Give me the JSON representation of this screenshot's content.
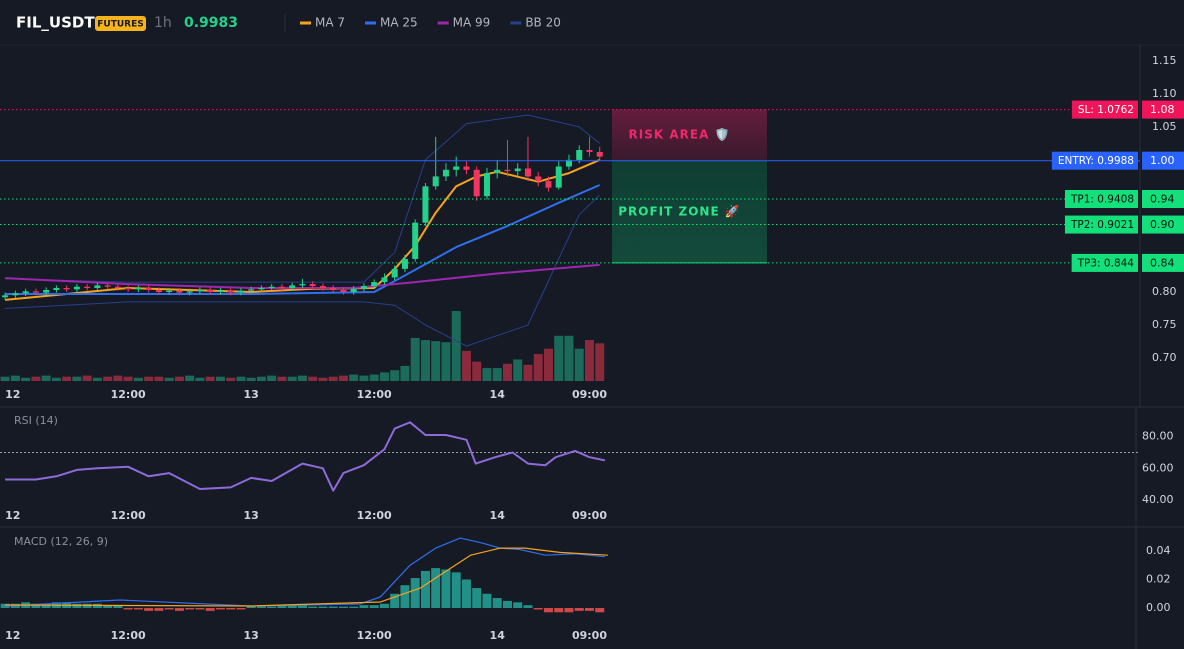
{
  "header": {
    "symbol": "FIL_USDT",
    "badge": "FUTURES",
    "interval": "1h",
    "price": 0.9983
  },
  "chart_data": [
    {
      "type": "candlestick",
      "xlim": [
        -0.5,
        110.7
      ],
      "xticks": [
        {
          "value": 0,
          "label": "12"
        },
        {
          "value": 12,
          "label": "12:00"
        },
        {
          "value": 24,
          "label": "13"
        },
        {
          "value": 36,
          "label": "12:00"
        },
        {
          "value": 48,
          "label": "14"
        },
        {
          "value": 57,
          "label": "09:00"
        }
      ],
      "ylim": [
        0.644,
        1.174
      ],
      "yticks": [
        {
          "value": 0.7,
          "label": "0.70"
        },
        0.75,
        {
          "value": 0.8,
          "label": "0.80"
        },
        1.05,
        {
          "value": 1.1,
          "label": "1.10"
        },
        1.15
      ],
      "up_color": "#23d18b",
      "down_color": "#f23660",
      "volume_up_color": "#1c6b5a",
      "volume_down_color": "#8a2a3c",
      "x": [
        0,
        1,
        2,
        3,
        4,
        5,
        6,
        7,
        8,
        9,
        10,
        11,
        12,
        13,
        14,
        15,
        16,
        17,
        18,
        19,
        20,
        21,
        22,
        23,
        24,
        25,
        26,
        27,
        28,
        29,
        30,
        31,
        32,
        33,
        34,
        35,
        36,
        37,
        38,
        39,
        40,
        41,
        42,
        43,
        44,
        45,
        46,
        47,
        48,
        49,
        50,
        51,
        52,
        53,
        54,
        55,
        56,
        57,
        58
      ],
      "open": [
        0.792,
        0.795,
        0.798,
        0.801,
        0.799,
        0.803,
        0.806,
        0.804,
        0.808,
        0.806,
        0.81,
        0.808,
        0.806,
        0.804,
        0.806,
        0.803,
        0.8,
        0.802,
        0.799,
        0.801,
        0.803,
        0.8,
        0.802,
        0.799,
        0.802,
        0.804,
        0.806,
        0.808,
        0.806,
        0.81,
        0.812,
        0.809,
        0.806,
        0.803,
        0.8,
        0.805,
        0.809,
        0.815,
        0.822,
        0.835,
        0.85,
        0.905,
        0.96,
        0.975,
        0.985,
        0.99,
        0.985,
        0.945,
        0.98,
        0.985,
        0.983,
        0.987,
        0.975,
        0.968,
        0.958,
        0.99,
        1.0,
        1.015,
        1.012
      ],
      "high": [
        0.799,
        0.802,
        0.805,
        0.805,
        0.807,
        0.81,
        0.81,
        0.812,
        0.812,
        0.814,
        0.814,
        0.812,
        0.81,
        0.81,
        0.81,
        0.807,
        0.806,
        0.806,
        0.805,
        0.807,
        0.807,
        0.806,
        0.806,
        0.806,
        0.808,
        0.81,
        0.812,
        0.812,
        0.814,
        0.82,
        0.816,
        0.813,
        0.81,
        0.807,
        0.809,
        0.813,
        0.819,
        0.828,
        0.84,
        0.856,
        0.91,
        0.965,
        1.035,
        0.995,
        1.005,
        0.998,
        0.99,
        0.988,
        1.0,
        1.03,
        0.995,
        1.035,
        0.982,
        0.975,
        0.998,
        1.008,
        1.022,
        1.035,
        1.02
      ],
      "low": [
        0.788,
        0.791,
        0.794,
        0.795,
        0.795,
        0.799,
        0.8,
        0.8,
        0.802,
        0.802,
        0.804,
        0.802,
        0.8,
        0.8,
        0.799,
        0.796,
        0.796,
        0.795,
        0.795,
        0.797,
        0.796,
        0.796,
        0.795,
        0.795,
        0.798,
        0.8,
        0.802,
        0.802,
        0.802,
        0.806,
        0.805,
        0.802,
        0.799,
        0.796,
        0.796,
        0.801,
        0.805,
        0.811,
        0.818,
        0.83,
        0.846,
        0.9,
        0.955,
        0.968,
        0.975,
        0.978,
        0.938,
        0.94,
        0.972,
        0.975,
        0.975,
        0.968,
        0.96,
        0.952,
        0.955,
        0.985,
        0.995,
        1.005,
        0.998
      ],
      "close": [
        0.795,
        0.798,
        0.801,
        0.799,
        0.803,
        0.806,
        0.804,
        0.808,
        0.806,
        0.81,
        0.808,
        0.806,
        0.804,
        0.806,
        0.803,
        0.8,
        0.802,
        0.799,
        0.801,
        0.803,
        0.8,
        0.802,
        0.799,
        0.802,
        0.804,
        0.806,
        0.808,
        0.806,
        0.81,
        0.812,
        0.809,
        0.806,
        0.803,
        0.8,
        0.805,
        0.809,
        0.815,
        0.822,
        0.835,
        0.85,
        0.905,
        0.96,
        0.975,
        0.985,
        0.99,
        0.985,
        0.945,
        0.98,
        0.985,
        0.983,
        0.987,
        0.975,
        0.968,
        0.958,
        0.99,
        1.0,
        1.015,
        1.012,
        1.005
      ],
      "volume": [
        4,
        5,
        3,
        4,
        5,
        3,
        4,
        4,
        5,
        3,
        4,
        5,
        4,
        3,
        4,
        4,
        3,
        4,
        5,
        3,
        4,
        4,
        3,
        4,
        3,
        4,
        5,
        4,
        4,
        5,
        4,
        3,
        4,
        5,
        6,
        5,
        6,
        8,
        10,
        14,
        40,
        38,
        37,
        36,
        65,
        28,
        18,
        12,
        12,
        16,
        20,
        15,
        25,
        30,
        42,
        42,
        30,
        38,
        35
      ],
      "series": [
        {
          "name": "MA 7",
          "color": "#f7a21b",
          "x": [
            0,
            6,
            12,
            18,
            24,
            30,
            36,
            38,
            40,
            42,
            44,
            46,
            48,
            52,
            55,
            58
          ],
          "values": [
            0.788,
            0.797,
            0.806,
            0.803,
            0.8,
            0.805,
            0.806,
            0.835,
            0.87,
            0.92,
            0.96,
            0.975,
            0.982,
            0.967,
            0.98,
            1.0
          ]
        },
        {
          "name": "MA 25",
          "color": "#2f6fed",
          "x": [
            0,
            12,
            24,
            36,
            39,
            44,
            49,
            54,
            58
          ],
          "values": [
            0.797,
            0.797,
            0.797,
            0.8,
            0.825,
            0.868,
            0.9,
            0.935,
            0.962
          ]
        },
        {
          "name": "MA 99",
          "color": "#9c27b0",
          "x": [
            0,
            12,
            24,
            34,
            40,
            48,
            58
          ],
          "values": [
            0.821,
            0.812,
            0.806,
            0.806,
            0.815,
            0.828,
            0.841
          ]
        },
        {
          "name": "BB 20",
          "color": "#27408b",
          "x": [
            0,
            12,
            24,
            35,
            38,
            41,
            45,
            51,
            56,
            58
          ],
          "upper": [
            0.82,
            0.815,
            0.815,
            0.815,
            0.86,
            1.0,
            1.055,
            1.068,
            1.05,
            1.025
          ],
          "lower": [
            0.775,
            0.785,
            0.785,
            0.785,
            0.78,
            0.75,
            0.718,
            0.75,
            0.917,
            0.947
          ]
        }
      ],
      "levels": [
        {
          "label": "SL: 1.0762",
          "value": 1.0762,
          "tick": "1.08",
          "color": "#f0145a",
          "text_color": "#ffffff",
          "style": "dotted"
        },
        {
          "label": "ENTRY: 0.9988",
          "value": 0.9988,
          "tick": "1.00",
          "color": "#2962ff",
          "text_color": "#ffffff",
          "style": "solid"
        },
        {
          "label": "TP1: 0.9408",
          "value": 0.9408,
          "tick": "0.94",
          "color": "#12e07a",
          "text_color": "#08160f",
          "style": "dotted"
        },
        {
          "label": "TP2: 0.9021",
          "value": 0.9021,
          "tick": "0.90",
          "color": "#12e07a",
          "text_color": "#08160f",
          "style": "dotted"
        },
        {
          "label": "TP3: 0.844",
          "value": 0.844,
          "tick": "0.84",
          "color": "#12e07a",
          "text_color": "#08160f",
          "style": "dotted"
        }
      ],
      "zones": [
        {
          "label": "RISK AREA 🛡️",
          "color": "#f0286a"
        },
        {
          "label": "PROFIT ZONE 🚀",
          "color": "#2ee68a"
        }
      ]
    },
    {
      "type": "line",
      "title": "RSI (14)",
      "ylim": [
        38.8,
        98
      ],
      "yticks": [
        {
          "value": 40,
          "label": "40.00"
        },
        {
          "value": 60,
          "label": "60.00"
        },
        {
          "value": 80,
          "label": "80.00"
        }
      ],
      "reference_line": 70,
      "series": [
        {
          "color": "#8e6bd8",
          "x": [
            0,
            3,
            5,
            7,
            9,
            12,
            14,
            16,
            19,
            22,
            24,
            26,
            29,
            31,
            32,
            33,
            35,
            37,
            38,
            39.5,
            41,
            43,
            45,
            45.9,
            47.8,
            49.5,
            51,
            52.7,
            53.7,
            55.6,
            57,
            58.5
          ],
          "values": [
            53,
            53,
            55,
            59,
            60,
            61,
            55,
            57,
            47,
            48,
            54,
            52,
            63,
            60,
            46,
            57,
            62,
            72,
            85,
            89,
            81,
            81,
            78,
            63,
            67,
            70,
            63,
            62,
            67,
            71,
            67,
            65
          ]
        }
      ]
    },
    {
      "type": "macd",
      "title": "MACD (12, 26, 9)",
      "ylim": [
        -0.0105,
        0.0561
      ],
      "yticks": [
        {
          "value": 0,
          "label": "0.00"
        },
        0.02,
        0.04
      ],
      "up_color": "#26a69a",
      "down_color": "#ef5350",
      "histogram": [
        0.003,
        0.003,
        0.004,
        0.003,
        0.003,
        0.004,
        0.004,
        0.003,
        0.003,
        0.003,
        0.002,
        0.002,
        -0.001,
        -0.001,
        -0.002,
        -0.002,
        -0.001,
        -0.002,
        -0.001,
        -0.001,
        -0.002,
        -0.001,
        -0.001,
        -0.001,
        0.001,
        0.001,
        0.001,
        0.002,
        0.002,
        0.002,
        0.001,
        0.001,
        0.001,
        0.001,
        0.001,
        0.002,
        0.002,
        0.003,
        0.01,
        0.016,
        0.021,
        0.026,
        0.028,
        0.027,
        0.025,
        0.02,
        0.014,
        0.01,
        0.007,
        0.005,
        0.004,
        0.002,
        -0.001,
        -0.003,
        -0.003,
        -0.003,
        -0.002,
        -0.002,
        -0.003
      ],
      "series": [
        {
          "color": "#2f6fed",
          "x": [
            0,
            11.2,
            23.9,
            34.6,
            36.6,
            39.5,
            42,
            44.4,
            46.3,
            48.3,
            50.2,
            52.7,
            55.6,
            58.5
          ],
          "values": [
            0.0014,
            0.0056,
            0.0014,
            0.0028,
            0.0077,
            0.03,
            0.042,
            0.049,
            0.046,
            0.042,
            0.041,
            0.037,
            0.038,
            0.036
          ]
        },
        {
          "color": "#f7a21b",
          "x": [
            0,
            23.9,
            36.6,
            40.5,
            42.4,
            45.4,
            48.3,
            50.7,
            54.1,
            58.8
          ],
          "values": [
            0.0021,
            0.0014,
            0.0042,
            0.014,
            0.023,
            0.037,
            0.042,
            0.042,
            0.039,
            0.037
          ]
        }
      ]
    }
  ]
}
